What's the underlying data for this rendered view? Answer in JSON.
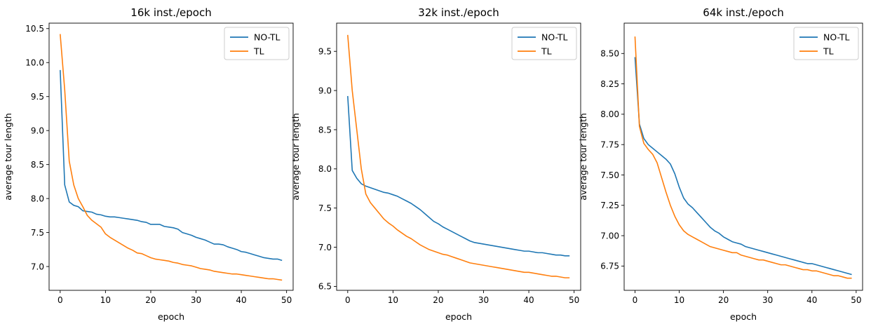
{
  "chart_data": [
    {
      "type": "line",
      "title": "16k inst./epoch",
      "xlabel": "epoch",
      "ylabel": "average tour length",
      "xlim": [
        -2.45,
        51.45
      ],
      "ylim": [
        6.65,
        10.58
      ],
      "xticks": [
        0,
        10,
        20,
        30,
        40,
        50
      ],
      "yticks": [
        7.0,
        7.5,
        8.0,
        8.5,
        9.0,
        9.5,
        10.0,
        10.5
      ],
      "ytick_decimals": 1,
      "grid": false,
      "legend": "top-right",
      "series": [
        {
          "name": "NO-TL",
          "color": "#1f77b4",
          "values": [
            9.89,
            8.2,
            7.95,
            7.9,
            7.88,
            7.82,
            7.81,
            7.8,
            7.77,
            7.76,
            7.74,
            7.73,
            7.73,
            7.72,
            7.71,
            7.7,
            7.69,
            7.68,
            7.66,
            7.65,
            7.62,
            7.62,
            7.62,
            7.59,
            7.58,
            7.57,
            7.55,
            7.5,
            7.48,
            7.46,
            7.43,
            7.41,
            7.39,
            7.36,
            7.33,
            7.33,
            7.32,
            7.29,
            7.27,
            7.25,
            7.22,
            7.21,
            7.19,
            7.17,
            7.15,
            7.13,
            7.12,
            7.11,
            7.11,
            7.09
          ]
        },
        {
          "name": "TL",
          "color": "#ff7f0e",
          "values": [
            10.42,
            9.6,
            8.55,
            8.2,
            8.0,
            7.88,
            7.75,
            7.68,
            7.63,
            7.58,
            7.48,
            7.43,
            7.39,
            7.35,
            7.31,
            7.27,
            7.24,
            7.2,
            7.19,
            7.16,
            7.13,
            7.11,
            7.1,
            7.09,
            7.08,
            7.06,
            7.05,
            7.03,
            7.02,
            7.01,
            6.99,
            6.97,
            6.96,
            6.95,
            6.93,
            6.92,
            6.91,
            6.9,
            6.89,
            6.89,
            6.88,
            6.87,
            6.86,
            6.85,
            6.84,
            6.83,
            6.82,
            6.82,
            6.81,
            6.8
          ]
        }
      ]
    },
    {
      "type": "line",
      "title": "32k inst./epoch",
      "xlabel": "epoch",
      "ylabel": "average tour length",
      "xlim": [
        -2.45,
        51.45
      ],
      "ylim": [
        6.45,
        9.86
      ],
      "xticks": [
        0,
        10,
        20,
        30,
        40,
        50
      ],
      "yticks": [
        6.5,
        7.0,
        7.5,
        8.0,
        8.5,
        9.0,
        9.5
      ],
      "ytick_decimals": 1,
      "grid": false,
      "legend": "top-right",
      "series": [
        {
          "name": "NO-TL",
          "color": "#1f77b4",
          "values": [
            8.93,
            7.98,
            7.88,
            7.81,
            7.78,
            7.76,
            7.74,
            7.72,
            7.7,
            7.69,
            7.67,
            7.65,
            7.62,
            7.59,
            7.56,
            7.52,
            7.48,
            7.43,
            7.38,
            7.33,
            7.3,
            7.26,
            7.23,
            7.2,
            7.17,
            7.14,
            7.11,
            7.08,
            7.06,
            7.05,
            7.04,
            7.03,
            7.02,
            7.01,
            7.0,
            6.99,
            6.98,
            6.97,
            6.96,
            6.95,
            6.95,
            6.94,
            6.93,
            6.93,
            6.92,
            6.91,
            6.9,
            6.9,
            6.89,
            6.89
          ]
        },
        {
          "name": "TL",
          "color": "#ff7f0e",
          "values": [
            9.71,
            9.0,
            8.5,
            8.0,
            7.68,
            7.57,
            7.5,
            7.43,
            7.36,
            7.31,
            7.27,
            7.22,
            7.18,
            7.14,
            7.11,
            7.07,
            7.03,
            7.0,
            6.97,
            6.95,
            6.93,
            6.91,
            6.9,
            6.88,
            6.86,
            6.84,
            6.82,
            6.8,
            6.79,
            6.78,
            6.77,
            6.76,
            6.75,
            6.74,
            6.73,
            6.72,
            6.71,
            6.7,
            6.69,
            6.68,
            6.68,
            6.67,
            6.66,
            6.65,
            6.64,
            6.63,
            6.63,
            6.62,
            6.61,
            6.61
          ]
        }
      ]
    },
    {
      "type": "line",
      "title": "64k inst./epoch",
      "xlabel": "epoch",
      "ylabel": "average tour length",
      "xlim": [
        -2.45,
        51.45
      ],
      "ylim": [
        6.55,
        8.75
      ],
      "xticks": [
        0,
        10,
        20,
        30,
        40,
        50
      ],
      "yticks": [
        6.75,
        7.0,
        7.25,
        7.5,
        7.75,
        8.0,
        8.25,
        8.5
      ],
      "ytick_decimals": 2,
      "grid": false,
      "legend": "top-right",
      "series": [
        {
          "name": "NO-TL",
          "color": "#1f77b4",
          "values": [
            8.47,
            7.92,
            7.8,
            7.75,
            7.72,
            7.69,
            7.66,
            7.63,
            7.59,
            7.51,
            7.4,
            7.31,
            7.26,
            7.23,
            7.19,
            7.15,
            7.11,
            7.07,
            7.04,
            7.02,
            6.99,
            6.97,
            6.95,
            6.94,
            6.93,
            6.91,
            6.9,
            6.89,
            6.88,
            6.87,
            6.86,
            6.85,
            6.84,
            6.83,
            6.82,
            6.81,
            6.8,
            6.79,
            6.78,
            6.77,
            6.77,
            6.76,
            6.75,
            6.74,
            6.73,
            6.72,
            6.71,
            6.7,
            6.69,
            6.68
          ]
        },
        {
          "name": "TL",
          "color": "#ff7f0e",
          "values": [
            8.64,
            7.9,
            7.76,
            7.71,
            7.67,
            7.6,
            7.48,
            7.36,
            7.25,
            7.16,
            7.09,
            7.04,
            7.01,
            6.99,
            6.97,
            6.95,
            6.93,
            6.91,
            6.9,
            6.89,
            6.88,
            6.87,
            6.86,
            6.86,
            6.84,
            6.83,
            6.82,
            6.81,
            6.8,
            6.8,
            6.79,
            6.78,
            6.77,
            6.76,
            6.76,
            6.75,
            6.74,
            6.73,
            6.72,
            6.72,
            6.71,
            6.71,
            6.7,
            6.69,
            6.68,
            6.67,
            6.67,
            6.66,
            6.65,
            6.65
          ]
        }
      ]
    }
  ]
}
